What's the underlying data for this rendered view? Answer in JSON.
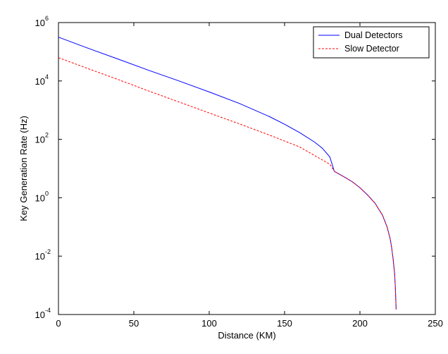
{
  "chart_data": {
    "type": "line",
    "xlabel": "Distance (KM)",
    "ylabel": "Key Generation Rate (Hz)",
    "xlim": [
      0,
      250
    ],
    "ylim": [
      0.0001,
      1000000
    ],
    "yscale": "log",
    "x_ticks": [
      0,
      50,
      100,
      150,
      200,
      250
    ],
    "y_ticks": [
      {
        "base": "10",
        "exp": "6",
        "value": 1000000
      },
      {
        "base": "10",
        "exp": "4",
        "value": 10000
      },
      {
        "base": "10",
        "exp": "2",
        "value": 100
      },
      {
        "base": "10",
        "exp": "0",
        "value": 1
      },
      {
        "base": "10",
        "exp": "-2",
        "value": 0.01
      },
      {
        "base": "10",
        "exp": "-4",
        "value": 0.0001
      }
    ],
    "grid": false,
    "legend_position": "top-right",
    "series": [
      {
        "name": "Dual Detectors",
        "color": "#0000ff",
        "style": "solid",
        "x": [
          0,
          20,
          40,
          60,
          80,
          100,
          120,
          140,
          150,
          160,
          170,
          175,
          180,
          183,
          185,
          190,
          195,
          200,
          205,
          210,
          215,
          218,
          220,
          221,
          222,
          223,
          223.5,
          224
        ],
        "y": [
          316000,
          130000,
          55000,
          23000,
          10000,
          4200,
          1700,
          600,
          330,
          170,
          80,
          50,
          25,
          8,
          7,
          5,
          3.5,
          2.2,
          1.25,
          0.65,
          0.25,
          0.1,
          0.04,
          0.02,
          0.008,
          0.0025,
          0.0008,
          0.00015
        ]
      },
      {
        "name": "Slow Detector",
        "color": "#ff0000",
        "style": "dashed",
        "x": [
          0,
          20,
          40,
          60,
          80,
          100,
          120,
          140,
          160,
          180,
          183,
          185,
          190,
          195,
          200,
          205,
          210,
          215,
          218,
          220,
          221,
          222,
          223,
          223.5,
          224
        ],
        "y": [
          63000,
          26000,
          11000,
          4500,
          1900,
          800,
          340,
          140,
          55,
          14,
          8,
          7,
          5,
          3.5,
          2.2,
          1.25,
          0.65,
          0.25,
          0.1,
          0.04,
          0.02,
          0.008,
          0.0025,
          0.0008,
          0.00015
        ]
      }
    ]
  }
}
